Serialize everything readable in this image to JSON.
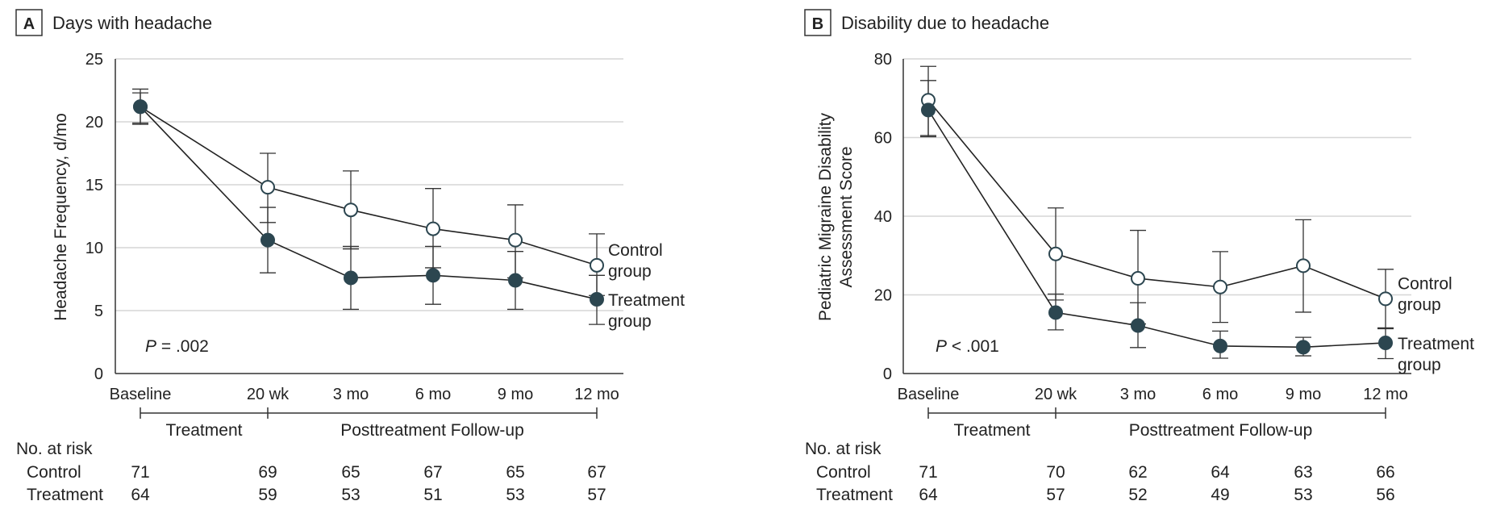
{
  "chart_data": [
    {
      "type": "line",
      "panel_letter": "A",
      "title": "Days with headache",
      "ylabel": "Headache Frequency, d/mo",
      "xlabel": "",
      "ylim": [
        0,
        25
      ],
      "yticks": [
        "0",
        "5",
        "10",
        "15",
        "20",
        "25"
      ],
      "categories": [
        "Baseline",
        "20 wk",
        "3 mo",
        "6 mo",
        "9 mo",
        "12 mo"
      ],
      "grid": "horizontal",
      "series": [
        {
          "name": "Control group",
          "name_lines": [
            "Control",
            "group"
          ],
          "marker": "open-circle",
          "color": "#2c4650",
          "values": [
            21.2,
            14.8,
            13.0,
            11.5,
            10.6,
            8.6
          ],
          "err_low": [
            19.8,
            12.0,
            9.9,
            8.4,
            7.6,
            6.2
          ],
          "err_high": [
            22.6,
            17.5,
            16.1,
            14.7,
            13.4,
            11.1
          ]
        },
        {
          "name": "Treatment group",
          "name_lines": [
            "Treatment",
            "group"
          ],
          "marker": "filled-circle",
          "color": "#2c4650",
          "values": [
            21.2,
            10.6,
            7.6,
            7.8,
            7.4,
            5.9
          ],
          "err_low": [
            19.9,
            8.0,
            5.1,
            5.5,
            5.1,
            3.9
          ],
          "err_high": [
            22.3,
            13.2,
            10.1,
            10.1,
            9.7,
            7.8
          ]
        }
      ],
      "p_value": {
        "symbol": "P",
        "text": " = .002"
      },
      "phases": [
        {
          "label": "Treatment",
          "from": 0,
          "to": 1
        },
        {
          "label": "Posttreatment Follow-up",
          "from": 1,
          "to": 5
        }
      ],
      "risk_table": {
        "header": "No. at risk",
        "rows": [
          {
            "label": "Control",
            "values": [
              "71",
              "69",
              "65",
              "67",
              "65",
              "67"
            ]
          },
          {
            "label": "Treatment",
            "values": [
              "64",
              "59",
              "53",
              "51",
              "53",
              "57"
            ]
          }
        ]
      }
    },
    {
      "type": "line",
      "panel_letter": "B",
      "title": "Disability due to headache",
      "ylabel_lines": [
        "Pediatric Migraine Disability",
        "Assessment Score"
      ],
      "xlabel": "",
      "ylim": [
        0,
        80
      ],
      "yticks": [
        "0",
        "20",
        "40",
        "60",
        "80"
      ],
      "categories": [
        "Baseline",
        "20 wk",
        "3 mo",
        "6 mo",
        "9 mo",
        "12 mo"
      ],
      "grid": "horizontal",
      "series": [
        {
          "name": "Control group",
          "name_lines": [
            "Control",
            "group"
          ],
          "marker": "open-circle",
          "color": "#2c4650",
          "values": [
            69.5,
            30.4,
            24.2,
            22.0,
            27.4,
            19.0
          ],
          "err_low": [
            60.5,
            18.7,
            12.6,
            13.0,
            15.6,
            11.6
          ],
          "err_high": [
            78.1,
            42.1,
            36.4,
            31.0,
            39.1,
            26.5
          ]
        },
        {
          "name": "Treatment group",
          "name_lines": [
            "Treatment",
            "group"
          ],
          "marker": "filled-circle",
          "color": "#2c4650",
          "values": [
            67.0,
            15.5,
            12.2,
            7.0,
            6.7,
            7.8
          ],
          "err_low": [
            60.2,
            11.1,
            6.6,
            3.9,
            4.5,
            3.8
          ],
          "err_high": [
            74.5,
            20.2,
            18.0,
            10.8,
            9.2,
            11.4
          ]
        }
      ],
      "p_value": {
        "symbol": "P",
        "text": " < .001"
      },
      "phases": [
        {
          "label": "Treatment",
          "from": 0,
          "to": 1
        },
        {
          "label": "Posttreatment Follow-up",
          "from": 1,
          "to": 5
        }
      ],
      "risk_table": {
        "header": "No. at risk",
        "rows": [
          {
            "label": "Control",
            "values": [
              "71",
              "70",
              "62",
              "64",
              "63",
              "66"
            ]
          },
          {
            "label": "Treatment",
            "values": [
              "64",
              "57",
              "52",
              "49",
              "53",
              "56"
            ]
          }
        ]
      }
    }
  ]
}
